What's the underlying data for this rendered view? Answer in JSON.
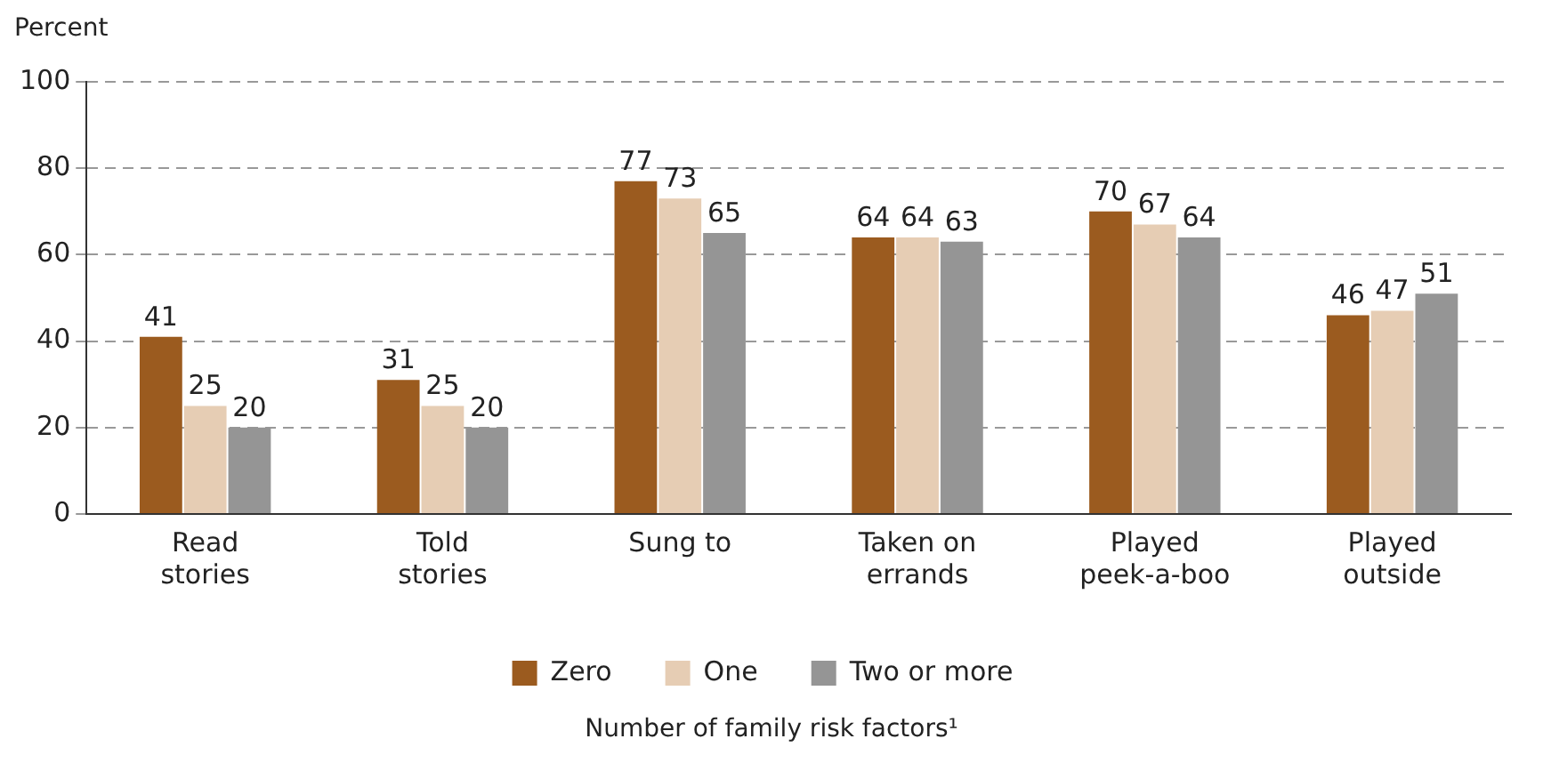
{
  "chart_data": {
    "type": "bar",
    "ylabel": "Percent",
    "legend_title": "Number of family risk factors¹",
    "categories": [
      "Read stories",
      "Told stories",
      "Sung to",
      "Taken on errands",
      "Played peek-a-boo",
      "Played outside"
    ],
    "series": [
      {
        "name": "Zero",
        "color": "#9b5b1f",
        "values": [
          41,
          31,
          77,
          64,
          70,
          46
        ]
      },
      {
        "name": "One",
        "color": "#e6cdb4",
        "values": [
          25,
          25,
          73,
          64,
          67,
          47
        ]
      },
      {
        "name": "Two or more",
        "color": "#959595",
        "values": [
          20,
          20,
          65,
          63,
          64,
          51
        ]
      }
    ],
    "ylim": [
      0,
      100
    ],
    "yticks": [
      0,
      20,
      40,
      60,
      80,
      100
    ],
    "grid": "y",
    "legend": "bottom",
    "data_labels": true
  }
}
